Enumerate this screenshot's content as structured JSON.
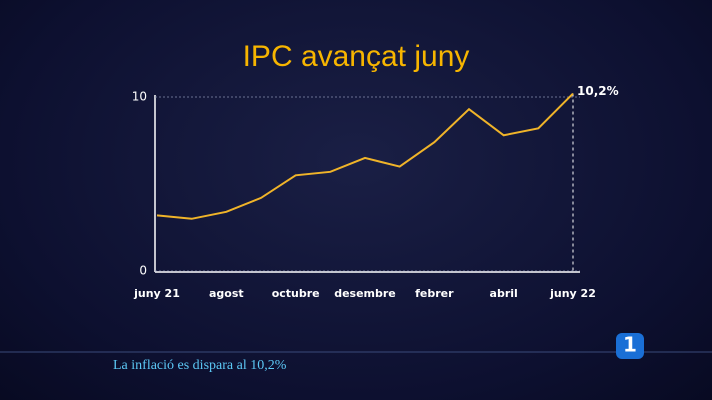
{
  "chart_data": {
    "type": "line",
    "title": "IPC avançat juny",
    "categories": [
      "juny 21",
      null,
      "agost",
      null,
      "octubre",
      null,
      "desembre",
      null,
      "febrer",
      null,
      "abril",
      null,
      "juny 22"
    ],
    "values": [
      3.2,
      3.0,
      3.4,
      4.2,
      5.5,
      5.7,
      6.5,
      6.0,
      7.4,
      9.3,
      7.8,
      8.2,
      10.2
    ],
    "value_labels": [
      null,
      null,
      null,
      null,
      null,
      null,
      null,
      null,
      null,
      null,
      null,
      null,
      "10,2%"
    ],
    "color": "#f0b429",
    "ylim": [
      0,
      10
    ],
    "yticks": [
      0,
      10
    ],
    "grid": true
  },
  "caption": "La inflació es dispara al 10,2%",
  "channel_logo": "1"
}
